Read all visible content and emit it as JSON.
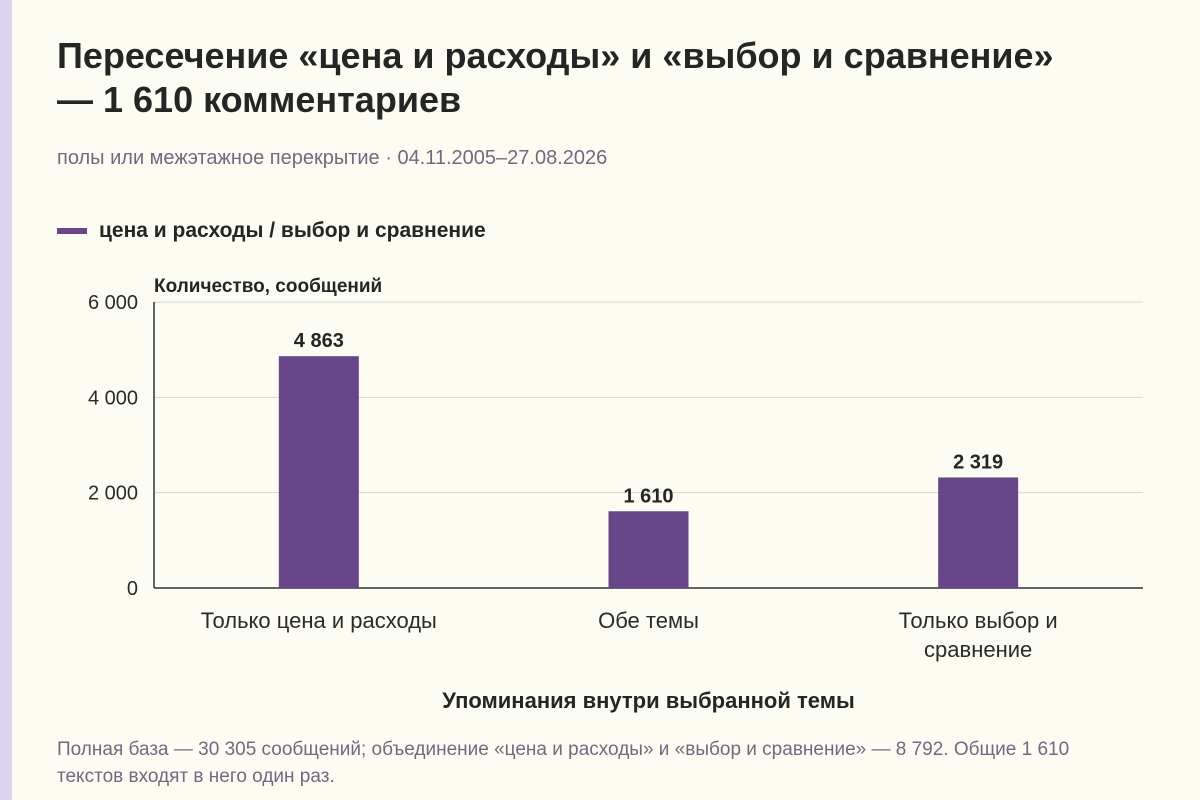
{
  "header": {
    "title": "Пересечение «цена и расходы» и «выбор и сравнение» — 1 610 комментариев",
    "subtitle": "полы или межэтажное перекрытие · 04.11.2005–27.08.2026"
  },
  "legend": {
    "label": "цена и расходы / выбор и сравнение"
  },
  "chart_data": {
    "type": "bar",
    "categories": [
      "Только цена и расходы",
      "Обе темы",
      "Только выбор и сравнение"
    ],
    "series": [
      {
        "name": "цена и расходы / выбор и сравнение",
        "values": [
          4863,
          1610,
          2319
        ]
      }
    ],
    "value_labels": [
      "4 863",
      "1 610",
      "2 319"
    ],
    "title": "Пересечение «цена и расходы» и «выбор и сравнение» — 1 610 комментариев",
    "xlabel": "Упоминания внутри выбранной темы",
    "ylabel": "Количество, сообщений",
    "ylim": [
      0,
      6000
    ],
    "yticks": [
      0,
      2000,
      4000,
      6000
    ],
    "ytick_labels": [
      "0",
      "2 000",
      "4 000",
      "6 000"
    ],
    "grid": true,
    "legend_position": "top-left",
    "bar_color": "#67468a"
  },
  "footnote": "Полная база — 30 305 сообщений; объединение «цена и расходы» и «выбор и сравнение» — 8 792. Общие 1 610 текстов входят в него один раз.",
  "colors": {
    "bar": "#67468a",
    "background": "#fdfcf3",
    "accent_strip": "#dcd3ec",
    "muted_text": "#6f6a80"
  }
}
